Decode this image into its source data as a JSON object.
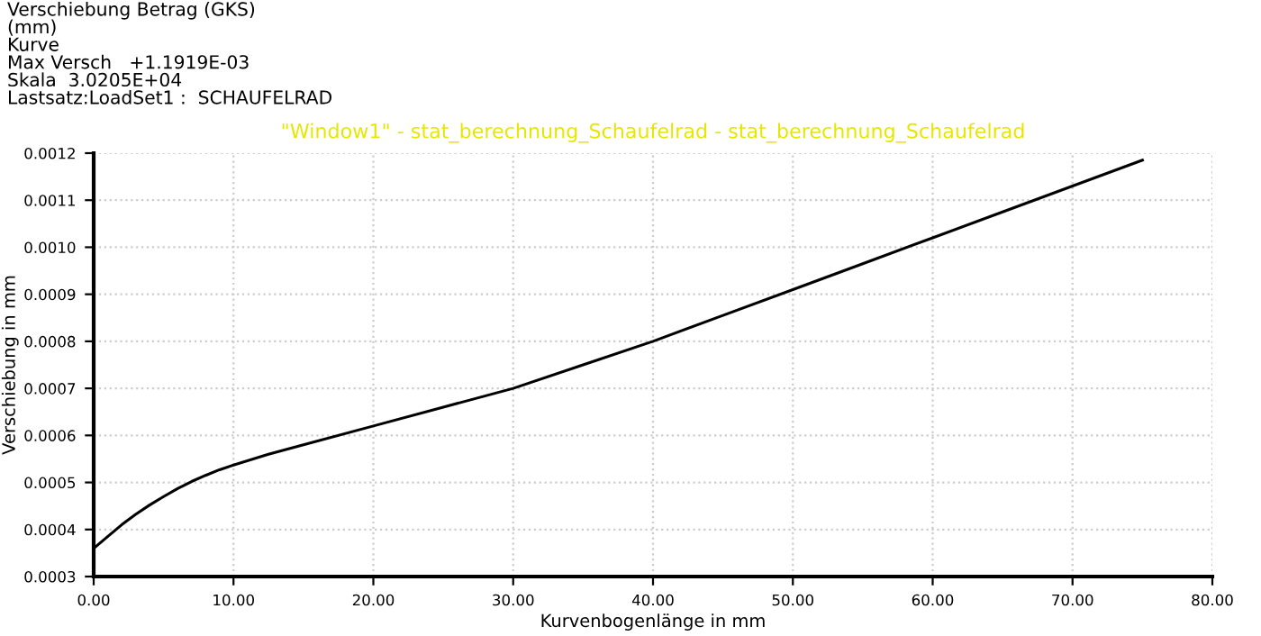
{
  "chart_data": {
    "type": "line",
    "title": "\"Window1\" - stat_berechnung_Schaufelrad - stat_berechnung_Schaufelrad",
    "annotations": [
      "Verschiebung Betrag (GKS)",
      "(mm)",
      "Kurve",
      "Max Versch   +1.1919E-03",
      "Skala  3.0205E+04",
      "Lastsatz:LoadSet1 :  SCHAUFELRAD"
    ],
    "xlabel": "Kurvenbogenlänge in mm",
    "ylabel": "Verschiebung in mm",
    "x": [
      0,
      1,
      2,
      3,
      4,
      5,
      6,
      7,
      8,
      9,
      10,
      12.5,
      15,
      20,
      25,
      30,
      35,
      40,
      45,
      50,
      55,
      60,
      65,
      70,
      75
    ],
    "series": [
      {
        "color": "#000000",
        "values": [
          0.00036,
          0.000385,
          0.00041,
          0.000432,
          0.000452,
          0.00047,
          0.000487,
          0.000502,
          0.000515,
          0.000527,
          0.000537,
          0.00056,
          0.00058,
          0.00062,
          0.00066,
          0.0007,
          0.00075,
          0.0008,
          0.000855,
          0.00091,
          0.000965,
          0.00102,
          0.001075,
          0.00113,
          0.001185
        ]
      }
    ],
    "xlim": [
      0,
      80
    ],
    "ylim": [
      0.0003,
      0.0012
    ],
    "xticks": [
      {
        "value": 0,
        "label": "0.00"
      },
      {
        "value": 10,
        "label": "10.00"
      },
      {
        "value": 20,
        "label": "20.00"
      },
      {
        "value": 30,
        "label": "30.00"
      },
      {
        "value": 40,
        "label": "40.00"
      },
      {
        "value": 50,
        "label": "50.00"
      },
      {
        "value": 60,
        "label": "60.00"
      },
      {
        "value": 70,
        "label": "70.00"
      },
      {
        "value": 80,
        "label": "80.00"
      }
    ],
    "yticks": [
      0.0003,
      0.0004,
      0.0005,
      0.0006,
      0.0007,
      0.0008,
      0.0009,
      {
        "value": 0.001,
        "label": "0.0010"
      },
      0.0011,
      0.0012
    ],
    "grid": true,
    "marker": "none",
    "line_style": "solid",
    "legend": false
  }
}
